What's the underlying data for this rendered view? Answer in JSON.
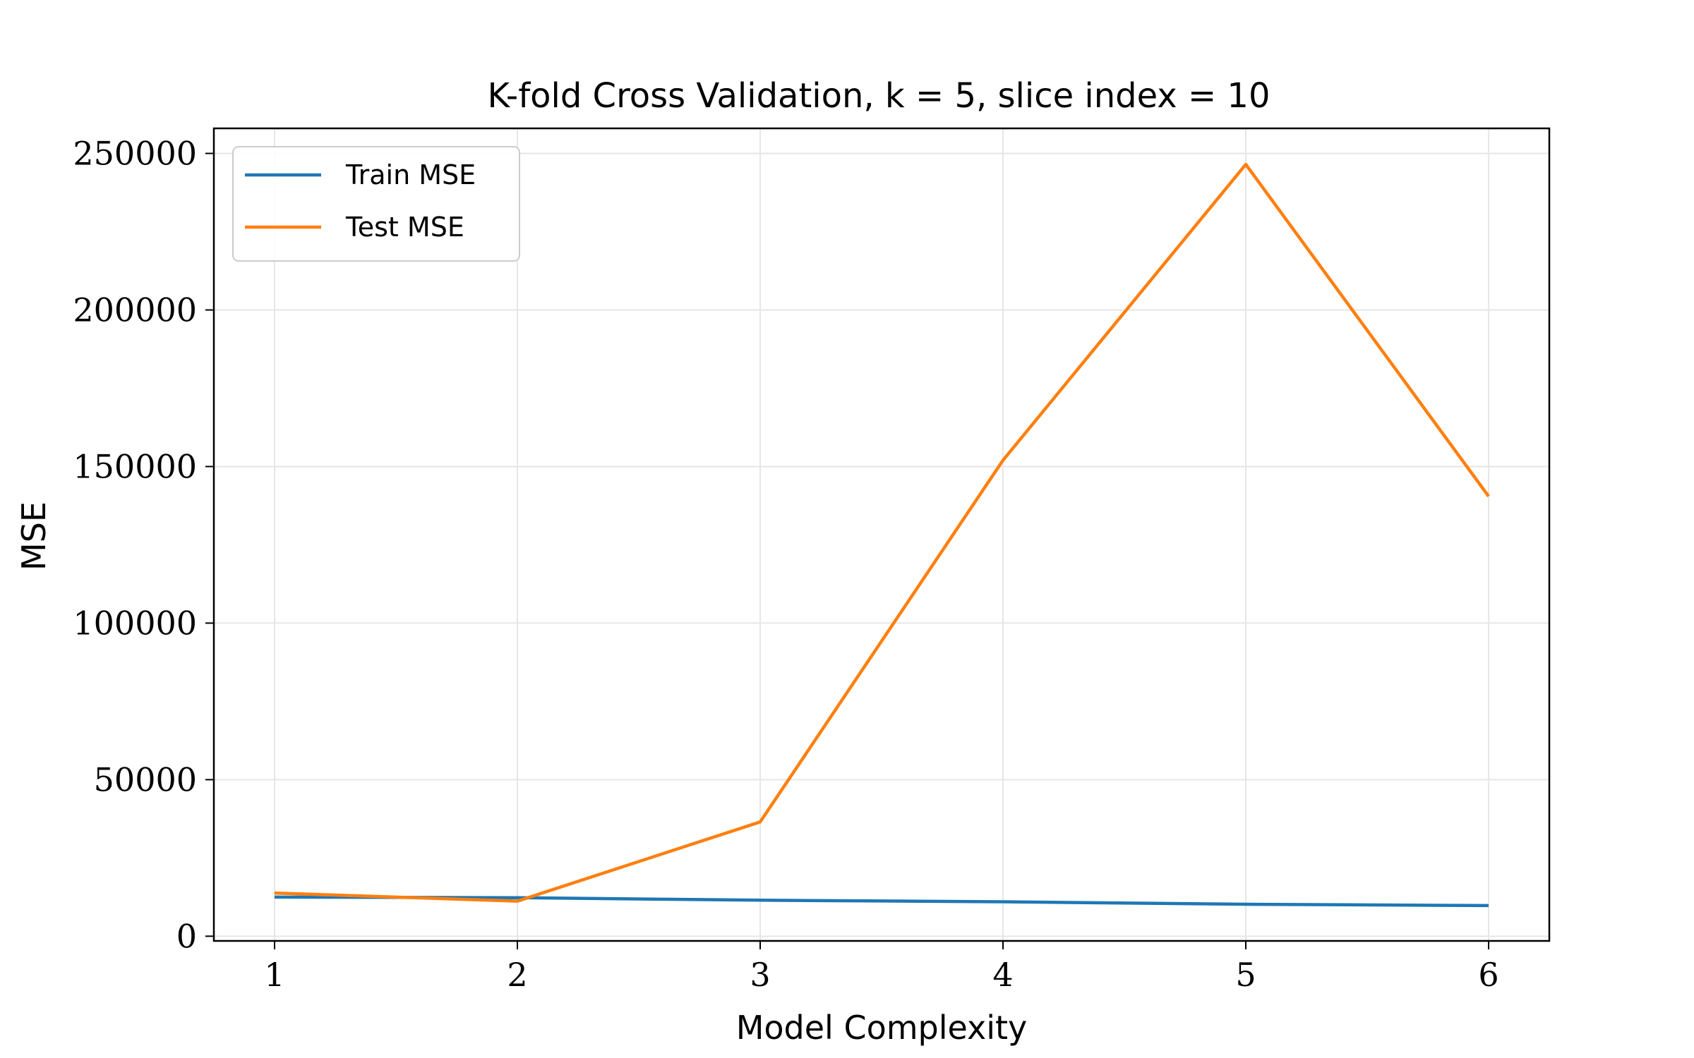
{
  "chart_data": {
    "type": "line",
    "title": "K-fold Cross Validation, k = 5, slice index = 10",
    "xlabel": "Model Complexity",
    "ylabel": "MSE",
    "x": [
      1,
      2,
      3,
      4,
      5,
      6
    ],
    "xlim": [
      0.75,
      6.25
    ],
    "ylim": [
      -1500,
      258000
    ],
    "xticks": [
      1,
      2,
      3,
      4,
      5,
      6
    ],
    "yticks": [
      0,
      50000,
      100000,
      150000,
      200000,
      250000
    ],
    "grid": true,
    "legend_position": "upper-left",
    "series": [
      {
        "name": "Train MSE",
        "color": "#1f77b4",
        "values": [
          12500,
          12300,
          11500,
          11000,
          10200,
          9800
        ]
      },
      {
        "name": "Test MSE",
        "color": "#ff7f0e",
        "values": [
          13800,
          11200,
          36500,
          152000,
          246500,
          140500
        ]
      }
    ]
  }
}
